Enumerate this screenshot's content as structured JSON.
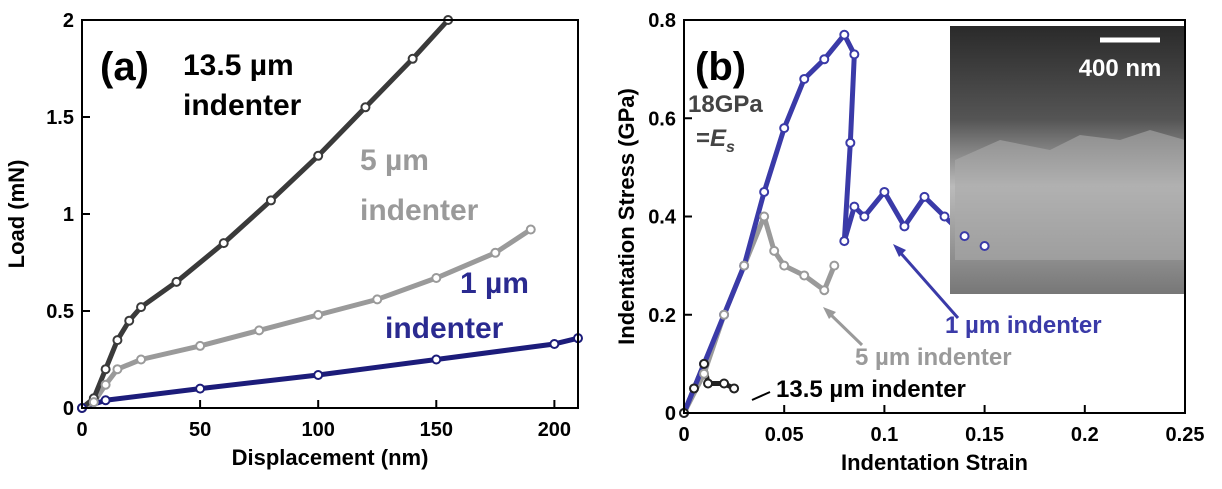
{
  "chart_data": [
    {
      "type": "line",
      "x_label": "Displacement (nm)",
      "y_label": "Load (mN)",
      "annotations": [
        "(a)",
        "13.5 µm",
        "indenter",
        "5 µm",
        "indenter",
        "1 µm",
        "indenter"
      ],
      "xlim": [
        0,
        210
      ],
      "xticks": [
        0,
        50,
        100,
        150,
        200
      ],
      "ylim": [
        0,
        2
      ],
      "yticks": [
        0,
        0.5,
        1,
        1.5,
        2
      ],
      "series": [
        {
          "name": "13.5 µm indenter",
          "color": "#3a3a3a",
          "x": [
            0,
            5,
            10,
            15,
            20,
            25,
            40,
            60,
            80,
            100,
            120,
            140,
            155
          ],
          "values": [
            0,
            0.05,
            0.2,
            0.35,
            0.45,
            0.52,
            0.65,
            0.85,
            1.07,
            1.3,
            1.55,
            1.8,
            2.0
          ]
        },
        {
          "name": "5 µm indenter",
          "color": "#9a9a9a",
          "x": [
            0,
            5,
            10,
            15,
            25,
            50,
            75,
            100,
            125,
            150,
            175,
            190
          ],
          "values": [
            0,
            0.03,
            0.12,
            0.2,
            0.25,
            0.32,
            0.4,
            0.48,
            0.56,
            0.67,
            0.8,
            0.92
          ]
        },
        {
          "name": "1 µm indenter",
          "color": "#1c1c7a",
          "x": [
            0,
            10,
            50,
            100,
            150,
            200,
            210
          ],
          "values": [
            0,
            0.04,
            0.1,
            0.17,
            0.25,
            0.33,
            0.36
          ]
        }
      ]
    },
    {
      "type": "line",
      "x_label": "Indentation Strain",
      "y_label": "Indentation Stress (GPa)",
      "annotations": [
        "(b)",
        "18GPa",
        "=",
        "E",
        "s",
        "400 nm",
        "1 µm indenter",
        "5 µm indenter",
        "13.5 µm indenter"
      ],
      "xlim": [
        0,
        0.25
      ],
      "xticks": [
        0,
        0.05,
        0.1,
        0.15,
        0.2,
        0.25
      ],
      "ylim": [
        0,
        0.8
      ],
      "yticks": [
        0,
        0.2,
        0.4,
        0.6,
        0.8
      ],
      "series": [
        {
          "name": "1 µm indenter",
          "color": "#3a3aa8",
          "x": [
            0,
            0.01,
            0.02,
            0.03,
            0.04,
            0.05,
            0.06,
            0.07,
            0.08,
            0.085,
            0.083,
            0.08,
            0.085,
            0.09,
            0.1,
            0.11,
            0.12,
            0.13,
            0.14,
            0.15
          ],
          "values": [
            0,
            0.1,
            0.2,
            0.3,
            0.45,
            0.58,
            0.68,
            0.72,
            0.77,
            0.73,
            0.55,
            0.35,
            0.42,
            0.4,
            0.45,
            0.38,
            0.44,
            0.4,
            0.36,
            0.34
          ]
        },
        {
          "name": "5 µm indenter",
          "color": "#9a9a9a",
          "x": [
            0,
            0.01,
            0.02,
            0.03,
            0.04,
            0.045,
            0.05,
            0.06,
            0.07,
            0.075
          ],
          "values": [
            0,
            0.08,
            0.2,
            0.3,
            0.4,
            0.33,
            0.3,
            0.28,
            0.25,
            0.3
          ]
        },
        {
          "name": "13.5 µm indenter",
          "color": "#222222",
          "x": [
            0,
            0.005,
            0.01,
            0.012,
            0.02,
            0.025
          ],
          "values": [
            0,
            0.05,
            0.1,
            0.06,
            0.06,
            0.05
          ]
        }
      ]
    }
  ]
}
